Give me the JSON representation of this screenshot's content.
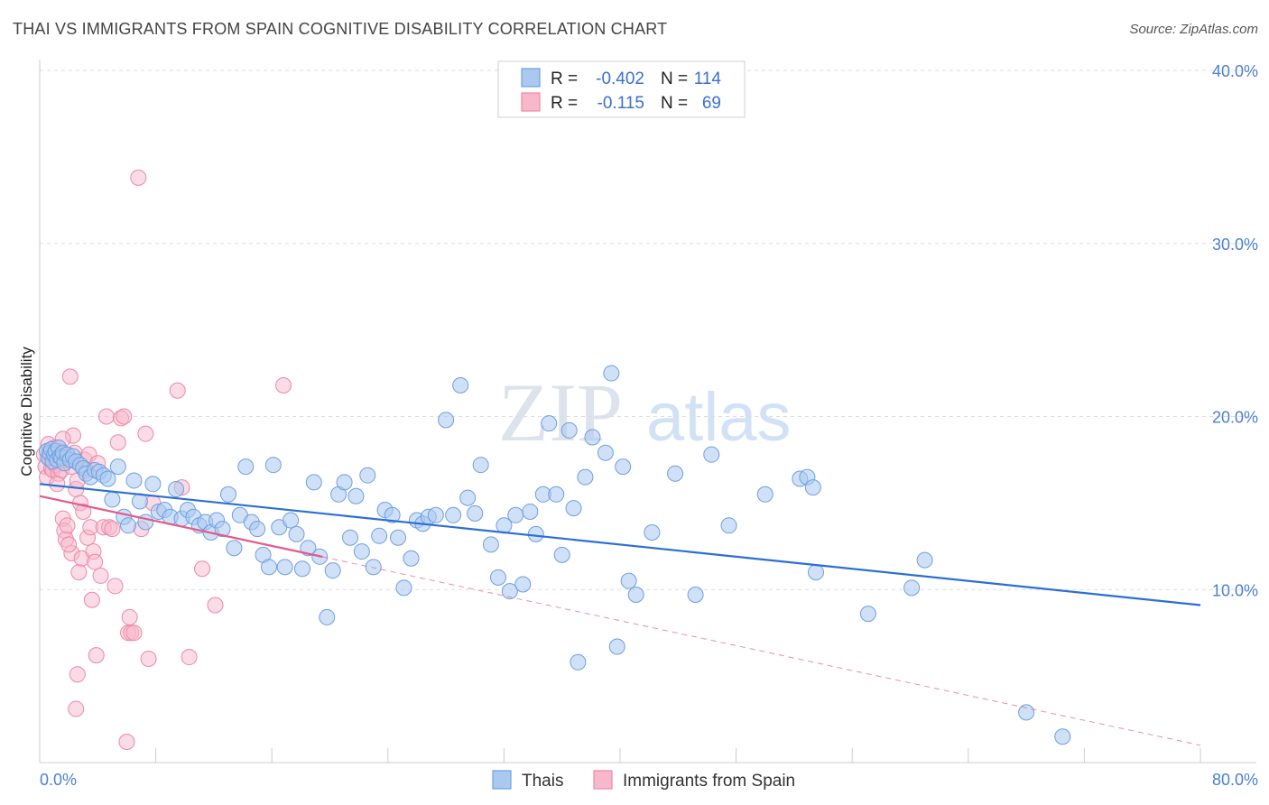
{
  "header": {
    "title": "THAI VS IMMIGRANTS FROM SPAIN COGNITIVE DISABILITY CORRELATION CHART",
    "source": "Source: ZipAtlas.com"
  },
  "watermark": {
    "zip": "ZIP",
    "atlas": "atlas"
  },
  "colors": {
    "thai_fill": "#aac8f0",
    "thai_stroke": "#6e9fe0",
    "thai_line": "#2a6fd6",
    "spain_fill": "#f7b8cb",
    "spain_stroke": "#ec89a8",
    "spain_line": "#e45a8a",
    "tick": "#4a7fd4",
    "grid": "#dddddd"
  },
  "legend": {
    "r_label": "R =",
    "n_label": "N =",
    "rows": [
      {
        "r": "-0.402",
        "n": "114"
      },
      {
        "r": "-0.115",
        "n": "69"
      }
    ]
  },
  "chart_data": {
    "type": "scatter",
    "title": "THAI VS IMMIGRANTS FROM SPAIN COGNITIVE DISABILITY CORRELATION CHART",
    "xlabel": "",
    "ylabel": "Cognitive Disability",
    "xlim": [
      0,
      80
    ],
    "ylim": [
      0,
      40
    ],
    "x_tick_labels": [
      "0.0%",
      "80.0%"
    ],
    "y_ticks": [
      10,
      20,
      30,
      40
    ],
    "y_tick_labels": [
      "10.0%",
      "20.0%",
      "30.0%",
      "40.0%"
    ],
    "grid": true,
    "legend_position": "top-center",
    "series": [
      {
        "name": "Thais",
        "r": -0.402,
        "n": 114,
        "trend": {
          "x0": 0,
          "y0": 16.1,
          "x1": 80,
          "y1": 9.1
        },
        "points": [
          [
            0.5,
            18.0
          ],
          [
            0.6,
            17.6
          ],
          [
            0.7,
            17.9
          ],
          [
            0.8,
            18.1
          ],
          [
            0.9,
            17.4
          ],
          [
            1.0,
            17.8
          ],
          [
            1.1,
            18.0
          ],
          [
            1.2,
            17.5
          ],
          [
            1.3,
            18.2
          ],
          [
            1.4,
            17.7
          ],
          [
            1.5,
            17.6
          ],
          [
            1.6,
            17.9
          ],
          [
            1.7,
            17.3
          ],
          [
            1.9,
            17.8
          ],
          [
            2.1,
            17.5
          ],
          [
            2.3,
            17.7
          ],
          [
            2.5,
            17.4
          ],
          [
            2.8,
            17.2
          ],
          [
            3.0,
            17.0
          ],
          [
            3.2,
            16.7
          ],
          [
            3.5,
            16.5
          ],
          [
            3.8,
            16.9
          ],
          [
            4.1,
            16.8
          ],
          [
            4.4,
            16.6
          ],
          [
            4.7,
            16.4
          ],
          [
            5.0,
            15.2
          ],
          [
            5.4,
            17.1
          ],
          [
            5.8,
            14.2
          ],
          [
            6.1,
            13.7
          ],
          [
            6.5,
            16.3
          ],
          [
            6.9,
            15.1
          ],
          [
            7.3,
            13.9
          ],
          [
            7.8,
            16.1
          ],
          [
            8.2,
            14.5
          ],
          [
            8.6,
            14.6
          ],
          [
            9.0,
            14.2
          ],
          [
            9.4,
            15.8
          ],
          [
            9.8,
            14.1
          ],
          [
            10.2,
            14.6
          ],
          [
            10.6,
            14.2
          ],
          [
            11.0,
            13.7
          ],
          [
            11.4,
            13.9
          ],
          [
            11.8,
            13.3
          ],
          [
            12.2,
            14.0
          ],
          [
            12.6,
            13.5
          ],
          [
            13.0,
            15.5
          ],
          [
            13.4,
            12.4
          ],
          [
            13.8,
            14.3
          ],
          [
            14.2,
            17.1
          ],
          [
            14.6,
            13.9
          ],
          [
            15.0,
            13.5
          ],
          [
            15.4,
            12.0
          ],
          [
            15.8,
            11.3
          ],
          [
            16.1,
            17.2
          ],
          [
            16.5,
            13.6
          ],
          [
            16.9,
            11.3
          ],
          [
            17.3,
            14.0
          ],
          [
            17.7,
            13.2
          ],
          [
            18.1,
            11.2
          ],
          [
            18.5,
            12.4
          ],
          [
            18.9,
            16.2
          ],
          [
            19.3,
            11.9
          ],
          [
            19.8,
            8.4
          ],
          [
            20.2,
            11.1
          ],
          [
            20.6,
            15.5
          ],
          [
            21.0,
            16.2
          ],
          [
            21.4,
            13.0
          ],
          [
            21.8,
            15.4
          ],
          [
            22.2,
            12.2
          ],
          [
            22.6,
            16.6
          ],
          [
            23.0,
            11.3
          ],
          [
            23.4,
            13.1
          ],
          [
            23.8,
            14.6
          ],
          [
            24.3,
            14.3
          ],
          [
            24.7,
            13.0
          ],
          [
            25.1,
            10.1
          ],
          [
            25.6,
            11.8
          ],
          [
            26.0,
            14.0
          ],
          [
            26.4,
            13.8
          ],
          [
            26.8,
            14.2
          ],
          [
            27.3,
            14.3
          ],
          [
            28.0,
            19.8
          ],
          [
            28.5,
            14.3
          ],
          [
            29.0,
            21.8
          ],
          [
            29.5,
            15.3
          ],
          [
            30.0,
            14.4
          ],
          [
            30.4,
            17.2
          ],
          [
            31.1,
            12.6
          ],
          [
            31.6,
            10.7
          ],
          [
            32.0,
            13.7
          ],
          [
            32.4,
            9.9
          ],
          [
            32.8,
            14.3
          ],
          [
            33.3,
            10.3
          ],
          [
            33.8,
            14.5
          ],
          [
            34.2,
            13.2
          ],
          [
            34.7,
            15.5
          ],
          [
            35.1,
            19.6
          ],
          [
            35.6,
            15.5
          ],
          [
            36.0,
            12.0
          ],
          [
            36.5,
            19.2
          ],
          [
            36.8,
            14.7
          ],
          [
            37.1,
            5.8
          ],
          [
            37.6,
            16.5
          ],
          [
            38.1,
            18.8
          ],
          [
            39.0,
            17.9
          ],
          [
            39.4,
            22.5
          ],
          [
            39.8,
            6.7
          ],
          [
            40.2,
            17.1
          ],
          [
            40.6,
            10.5
          ],
          [
            41.1,
            9.7
          ],
          [
            42.2,
            13.3
          ],
          [
            43.8,
            16.7
          ],
          [
            45.2,
            9.7
          ],
          [
            46.3,
            17.8
          ],
          [
            47.5,
            13.7
          ],
          [
            50.0,
            15.5
          ],
          [
            52.4,
            16.4
          ],
          [
            52.9,
            16.5
          ],
          [
            53.3,
            15.9
          ],
          [
            53.5,
            11.0
          ],
          [
            57.1,
            8.6
          ],
          [
            60.1,
            10.1
          ],
          [
            61.0,
            11.7
          ],
          [
            68.0,
            2.9
          ],
          [
            70.5,
            1.5
          ]
        ]
      },
      {
        "name": "Immigrants from Spain",
        "r": -0.115,
        "n": 69,
        "trend": {
          "x0": 0,
          "y0": 15.4,
          "x1": 80,
          "y1": 1.0,
          "solid_until": 19.5
        },
        "points": [
          [
            0.3,
            17.8
          ],
          [
            0.4,
            17.1
          ],
          [
            0.5,
            16.5
          ],
          [
            0.6,
            18.4
          ],
          [
            0.7,
            17.6
          ],
          [
            0.8,
            17.0
          ],
          [
            0.9,
            16.9
          ],
          [
            1.0,
            18.2
          ],
          [
            1.1,
            17.2
          ],
          [
            1.2,
            17.5
          ],
          [
            1.3,
            16.7
          ],
          [
            1.4,
            18.0
          ],
          [
            1.5,
            16.9
          ],
          [
            1.6,
            14.1
          ],
          [
            1.7,
            13.4
          ],
          [
            1.8,
            12.9
          ],
          [
            1.9,
            13.7
          ],
          [
            2.0,
            17.5
          ],
          [
            2.1,
            22.3
          ],
          [
            2.2,
            12.1
          ],
          [
            2.3,
            18.9
          ],
          [
            2.4,
            17.9
          ],
          [
            2.5,
            15.8
          ],
          [
            2.6,
            16.3
          ],
          [
            2.7,
            11.0
          ],
          [
            2.8,
            15.0
          ],
          [
            2.9,
            11.8
          ],
          [
            3.0,
            14.5
          ],
          [
            3.1,
            17.5
          ],
          [
            3.2,
            16.9
          ],
          [
            3.3,
            13.0
          ],
          [
            3.4,
            17.8
          ],
          [
            3.5,
            13.6
          ],
          [
            3.6,
            9.4
          ],
          [
            3.7,
            12.2
          ],
          [
            3.8,
            11.6
          ],
          [
            3.9,
            6.2
          ],
          [
            4.0,
            17.3
          ],
          [
            4.2,
            10.8
          ],
          [
            4.4,
            13.6
          ],
          [
            4.6,
            20.0
          ],
          [
            4.8,
            13.6
          ],
          [
            5.0,
            13.5
          ],
          [
            5.2,
            10.2
          ],
          [
            5.4,
            18.5
          ],
          [
            5.6,
            19.9
          ],
          [
            5.8,
            20.0
          ],
          [
            6.0,
            1.2
          ],
          [
            6.1,
            7.5
          ],
          [
            6.2,
            8.4
          ],
          [
            6.3,
            7.5
          ],
          [
            6.5,
            7.5
          ],
          [
            6.8,
            33.8
          ],
          [
            7.0,
            13.5
          ],
          [
            7.3,
            19.0
          ],
          [
            7.5,
            6.0
          ],
          [
            7.8,
            15.0
          ],
          [
            9.5,
            21.5
          ],
          [
            9.8,
            15.9
          ],
          [
            10.3,
            6.1
          ],
          [
            11.2,
            11.2
          ],
          [
            12.1,
            9.1
          ],
          [
            16.8,
            21.8
          ],
          [
            2.6,
            5.1
          ],
          [
            2.5,
            3.1
          ],
          [
            1.2,
            16.1
          ],
          [
            1.6,
            18.7
          ],
          [
            2.0,
            12.6
          ],
          [
            2.2,
            17.1
          ]
        ]
      }
    ]
  },
  "bottom_legend": {
    "thais": "Thais",
    "spain": "Immigrants from Spain"
  }
}
